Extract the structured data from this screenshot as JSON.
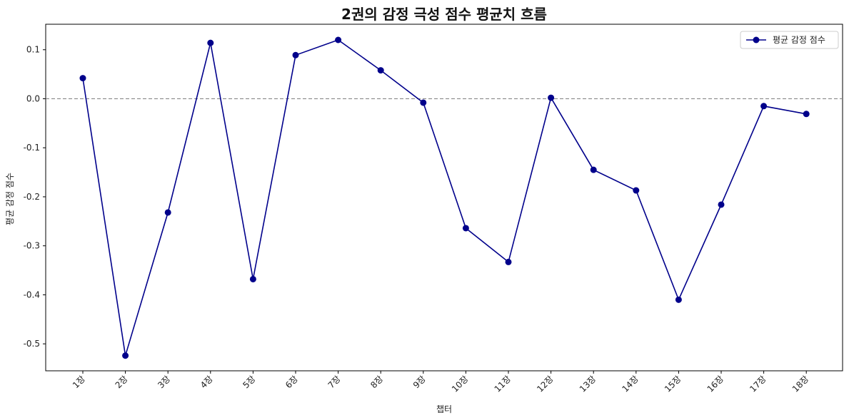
{
  "chart_data": {
    "type": "line",
    "title": "2권의 감정 극성 점수 평균치 흐름",
    "xlabel": "챕터",
    "ylabel": "평균 감정 점수",
    "categories": [
      "1장",
      "2장",
      "3장",
      "4장",
      "5장",
      "6장",
      "7장",
      "8장",
      "9장",
      "10장",
      "11장",
      "12장",
      "13장",
      "14장",
      "15장",
      "16장",
      "17장",
      "18장"
    ],
    "series": [
      {
        "name": "평균 감정 점수",
        "color": "#00008b",
        "values": [
          0.042,
          -0.524,
          -0.232,
          0.114,
          -0.368,
          0.089,
          0.12,
          0.058,
          -0.008,
          -0.264,
          -0.333,
          0.002,
          -0.145,
          -0.187,
          -0.41,
          -0.216,
          -0.015,
          -0.031
        ]
      }
    ],
    "ylim": [
      -0.555,
      0.152
    ],
    "yticks": [
      0.1,
      0.0,
      -0.1,
      -0.2,
      -0.3,
      -0.4,
      -0.5
    ],
    "ytick_labels": [
      "0.1",
      "0.0",
      "-0.1",
      "-0.2",
      "-0.3",
      "-0.4",
      "-0.5"
    ],
    "reference_line": {
      "y": 0.0,
      "color": "#808080",
      "style": "dashed"
    },
    "legend": {
      "position": "top-right"
    },
    "grid": false
  }
}
